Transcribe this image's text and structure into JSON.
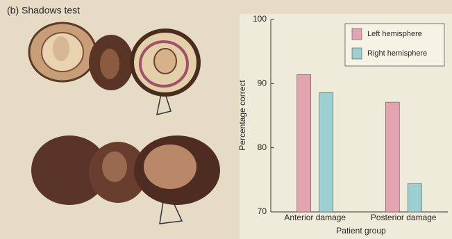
{
  "chart_data": {
    "type": "bar",
    "title": "(b) Shadows test",
    "categories": [
      "Anterior damage",
      "Posterior damage"
    ],
    "series": [
      {
        "name": "Left hemisphere",
        "color": "#e3a4b2",
        "values": [
          91.4,
          87.1
        ]
      },
      {
        "name": "Right hemisphere",
        "color": "#9ccfd0",
        "values": [
          88.6,
          74.4
        ]
      }
    ],
    "ylim": [
      70,
      100
    ],
    "yticks": [
      70,
      80,
      90,
      100
    ],
    "ylabel": "Percentage correct",
    "xlabel": "Patient group",
    "legend": "upper right",
    "grid": false
  }
}
